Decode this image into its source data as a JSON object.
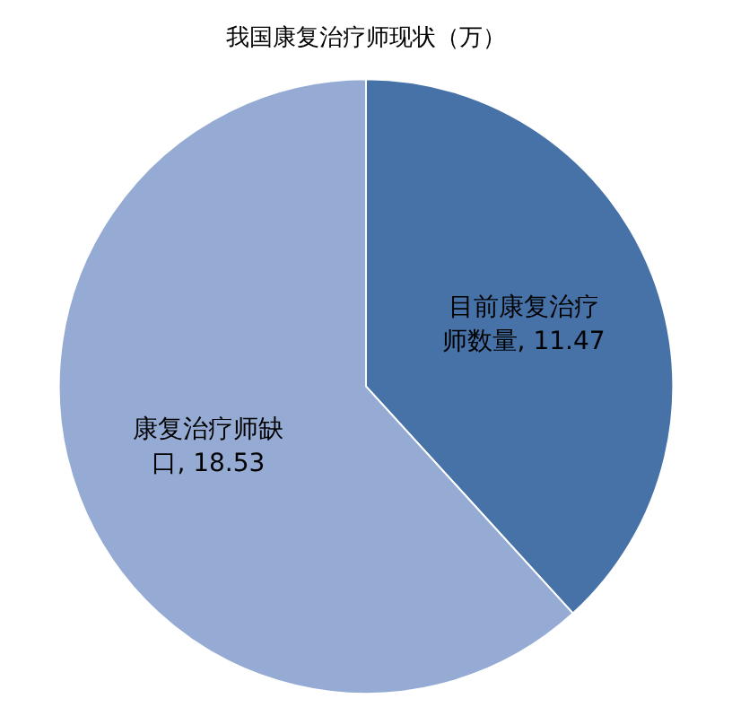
{
  "chart_data": {
    "type": "pie",
    "title": "我国康复治疗师现状（万）",
    "categories": [
      "目前康复治疗师数量",
      "康复治疗师缺口"
    ],
    "values": [
      11.47,
      18.53
    ],
    "colors": [
      "#4672a8",
      "#95abd4"
    ],
    "value_labels": [
      ", 11.47",
      ", 18.53"
    ],
    "legend": false
  }
}
